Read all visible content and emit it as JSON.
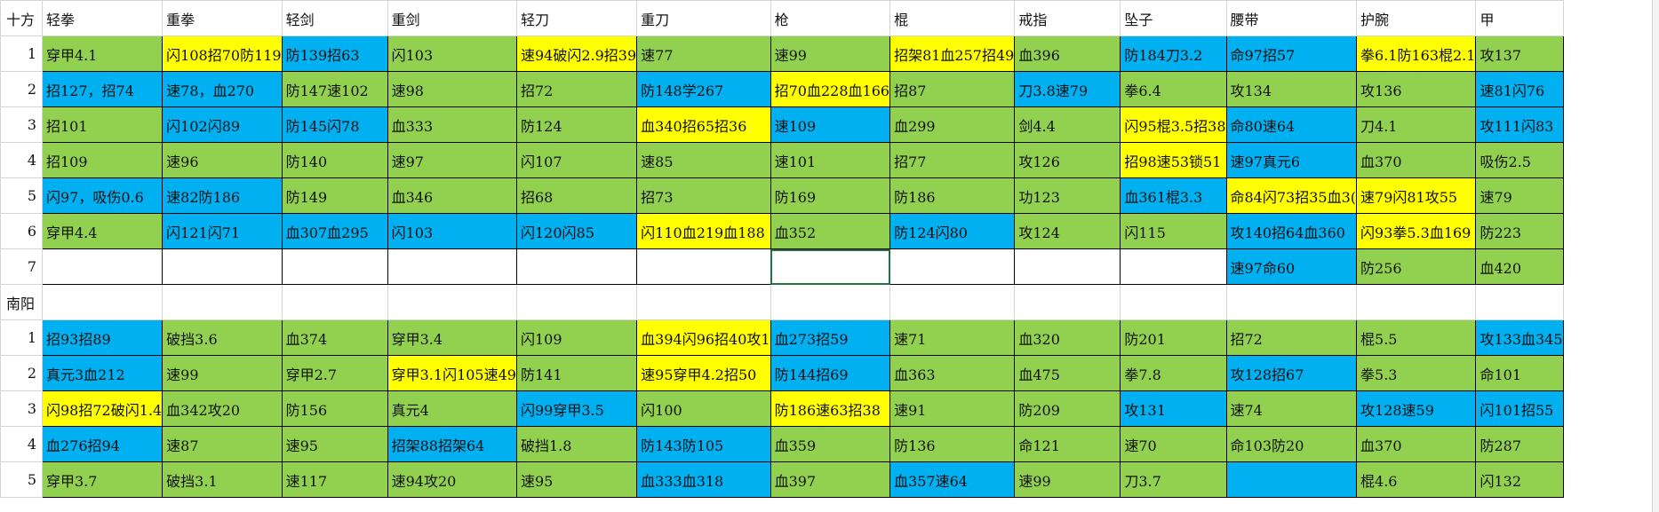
{
  "colors": {
    "g": "#92d050",
    "b": "#00b0f0",
    "y": "#ffff00",
    "w": "#ffffff"
  },
  "header": {
    "corner": "十方",
    "columns": [
      "轻拳",
      "重拳",
      "轻剑",
      "重剑",
      "轻刀",
      "重刀",
      "枪",
      "棍",
      "戒指",
      "坠子",
      "腰带",
      "护腕",
      "甲"
    ]
  },
  "sections": [
    {
      "rows": [
        {
          "label": "1",
          "cells": [
            [
              "穿甲4.1",
              "g"
            ],
            [
              "闪108招70防119",
              "y"
            ],
            [
              "防139招63",
              "b"
            ],
            [
              "闪103",
              "g"
            ],
            [
              "速94破闪2.9招39",
              "y"
            ],
            [
              "速77",
              "g"
            ],
            [
              "速99",
              "g"
            ],
            [
              "招架81血257招49",
              "y"
            ],
            [
              "血396",
              "g"
            ],
            [
              "防184刀3.2",
              "b"
            ],
            [
              "命97招57",
              "b"
            ],
            [
              "拳6.1防163棍2.1",
              "y"
            ],
            [
              "攻137",
              "g"
            ]
          ]
        },
        {
          "label": "2",
          "cells": [
            [
              "招127，招74",
              "b"
            ],
            [
              "速78，血270",
              "b"
            ],
            [
              "防147速102",
              "g"
            ],
            [
              "速98",
              "g"
            ],
            [
              "招72",
              "g"
            ],
            [
              "防148学267",
              "b"
            ],
            [
              "招70血228血166",
              "y"
            ],
            [
              "招87",
              "g"
            ],
            [
              "刀3.8速79",
              "b"
            ],
            [
              "拳6.4",
              "g"
            ],
            [
              "攻134",
              "g"
            ],
            [
              "攻136",
              "g"
            ],
            [
              "速81闪76",
              "b"
            ]
          ]
        },
        {
          "label": "3",
          "cells": [
            [
              "招101",
              "g"
            ],
            [
              "闪102闪89",
              "b"
            ],
            [
              "防145闪78",
              "b"
            ],
            [
              "血333",
              "g"
            ],
            [
              "防124",
              "g"
            ],
            [
              "血340招65招36",
              "y"
            ],
            [
              "速109",
              "b"
            ],
            [
              "血299",
              "g"
            ],
            [
              "剑4.4",
              "g"
            ],
            [
              "闪95棍3.5招38",
              "y"
            ],
            [
              "命80速64",
              "b"
            ],
            [
              "刀4.1",
              "g"
            ],
            [
              "攻111闪83",
              "b"
            ]
          ]
        },
        {
          "label": "4",
          "cells": [
            [
              "招109",
              "g"
            ],
            [
              "速96",
              "g"
            ],
            [
              "防140",
              "g"
            ],
            [
              "速97",
              "g"
            ],
            [
              "闪107",
              "g"
            ],
            [
              "速85",
              "g"
            ],
            [
              "速101",
              "g"
            ],
            [
              "招77",
              "g"
            ],
            [
              "攻126",
              "g"
            ],
            [
              "招98速53锁51",
              "y"
            ],
            [
              "速97真元6",
              "b"
            ],
            [
              "血370",
              "g"
            ],
            [
              "吸伤2.5",
              "g"
            ]
          ]
        },
        {
          "label": "5",
          "cells": [
            [
              "闪97，吸伤0.6",
              "b"
            ],
            [
              "速82防186",
              "b"
            ],
            [
              "防149",
              "g"
            ],
            [
              "血346",
              "g"
            ],
            [
              "招68",
              "g"
            ],
            [
              "招73",
              "g"
            ],
            [
              "防169",
              "g"
            ],
            [
              "防186",
              "g"
            ],
            [
              "功123",
              "g"
            ],
            [
              "血361棍3.3",
              "b"
            ],
            [
              "命84闪73招35血3(",
              "y"
            ],
            [
              "速79闪81攻55",
              "y"
            ],
            [
              "速79",
              "g"
            ]
          ]
        },
        {
          "label": "6",
          "cells": [
            [
              "穿甲4.4",
              "g"
            ],
            [
              "闪121闪71",
              "b"
            ],
            [
              "血307血295",
              "b"
            ],
            [
              "闪103",
              "b"
            ],
            [
              "闪120闪85",
              "b"
            ],
            [
              "闪110血219血188",
              "y"
            ],
            [
              "血352",
              "g"
            ],
            [
              "防124闪80",
              "b"
            ],
            [
              "攻124",
              "g"
            ],
            [
              "闪115",
              "g"
            ],
            [
              "攻140招64血360",
              "b"
            ],
            [
              "闪93拳5.3血169",
              "y"
            ],
            [
              "防223",
              "g"
            ]
          ]
        },
        {
          "label": "7",
          "cells": [
            [
              "",
              "w"
            ],
            [
              "",
              "w"
            ],
            [
              "",
              "w"
            ],
            [
              "",
              "w"
            ],
            [
              "",
              "w"
            ],
            [
              "",
              "w"
            ],
            [
              "",
              "w"
            ],
            [
              "",
              "w"
            ],
            [
              "",
              "w"
            ],
            [
              "",
              "w"
            ],
            [
              "速97命60",
              "b"
            ],
            [
              "防256",
              "g"
            ],
            [
              "血420",
              "g"
            ]
          ]
        }
      ]
    },
    {
      "title": "南阳",
      "rows": [
        {
          "label": "1",
          "cells": [
            [
              "招93招89",
              "b"
            ],
            [
              "破挡3.6",
              "g"
            ],
            [
              "血374",
              "g"
            ],
            [
              "穿甲3.4",
              "g"
            ],
            [
              "闪109",
              "g"
            ],
            [
              "血394闪96招40攻1",
              "y"
            ],
            [
              "血273招59",
              "b"
            ],
            [
              "速71",
              "g"
            ],
            [
              "血320",
              "g"
            ],
            [
              "防201",
              "g"
            ],
            [
              "招72",
              "g"
            ],
            [
              "棍5.5",
              "g"
            ],
            [
              "攻133血345",
              "b"
            ]
          ]
        },
        {
          "label": "2",
          "cells": [
            [
              "真元3血212",
              "b"
            ],
            [
              "速99",
              "g"
            ],
            [
              "穿甲2.7",
              "g"
            ],
            [
              "穿甲3.1闪105速49",
              "y"
            ],
            [
              "防141",
              "g"
            ],
            [
              "速95穿甲4.2招50",
              "y"
            ],
            [
              "防144招69",
              "b"
            ],
            [
              "血363",
              "g"
            ],
            [
              "血475",
              "g"
            ],
            [
              "拳7.8",
              "g"
            ],
            [
              "攻128招67",
              "b"
            ],
            [
              "拳5.3",
              "g"
            ],
            [
              "命101",
              "g"
            ]
          ]
        },
        {
          "label": "3",
          "cells": [
            [
              "闪98招72破闪1.4",
              "y"
            ],
            [
              "血342攻20",
              "g"
            ],
            [
              "防156",
              "g"
            ],
            [
              "真元4",
              "g"
            ],
            [
              "闪99穿甲3.5",
              "b"
            ],
            [
              "闪100",
              "g"
            ],
            [
              "防186速63招38",
              "y"
            ],
            [
              "速91",
              "g"
            ],
            [
              "防209",
              "g"
            ],
            [
              "攻131",
              "b"
            ],
            [
              "速74",
              "g"
            ],
            [
              "攻128速59",
              "b"
            ],
            [
              "闪101招55",
              "b"
            ]
          ]
        },
        {
          "label": "4",
          "cells": [
            [
              "血276招94",
              "b"
            ],
            [
              "速87",
              "g"
            ],
            [
              "速95",
              "g"
            ],
            [
              "招架88招架64",
              "b"
            ],
            [
              "破挡1.8",
              "g"
            ],
            [
              "防143防105",
              "b"
            ],
            [
              "血359",
              "g"
            ],
            [
              "防136",
              "g"
            ],
            [
              "命121",
              "g"
            ],
            [
              "速70",
              "g"
            ],
            [
              "命103防20",
              "g"
            ],
            [
              "血370",
              "g"
            ],
            [
              "防287",
              "g"
            ]
          ]
        },
        {
          "label": "5",
          "cells": [
            [
              "穿甲3.7",
              "g"
            ],
            [
              "破挡3.1",
              "g"
            ],
            [
              "速117",
              "g"
            ],
            [
              "速94攻20",
              "g"
            ],
            [
              "速95",
              "g"
            ],
            [
              "血333血318",
              "b"
            ],
            [
              "血397",
              "g"
            ],
            [
              "血357速64",
              "b"
            ],
            [
              "速99",
              "g"
            ],
            [
              "刀3.7",
              "g"
            ],
            [
              "",
              "b"
            ],
            [
              "棍4.6",
              "g"
            ],
            [
              "闪132",
              "g"
            ]
          ]
        }
      ]
    }
  ]
}
